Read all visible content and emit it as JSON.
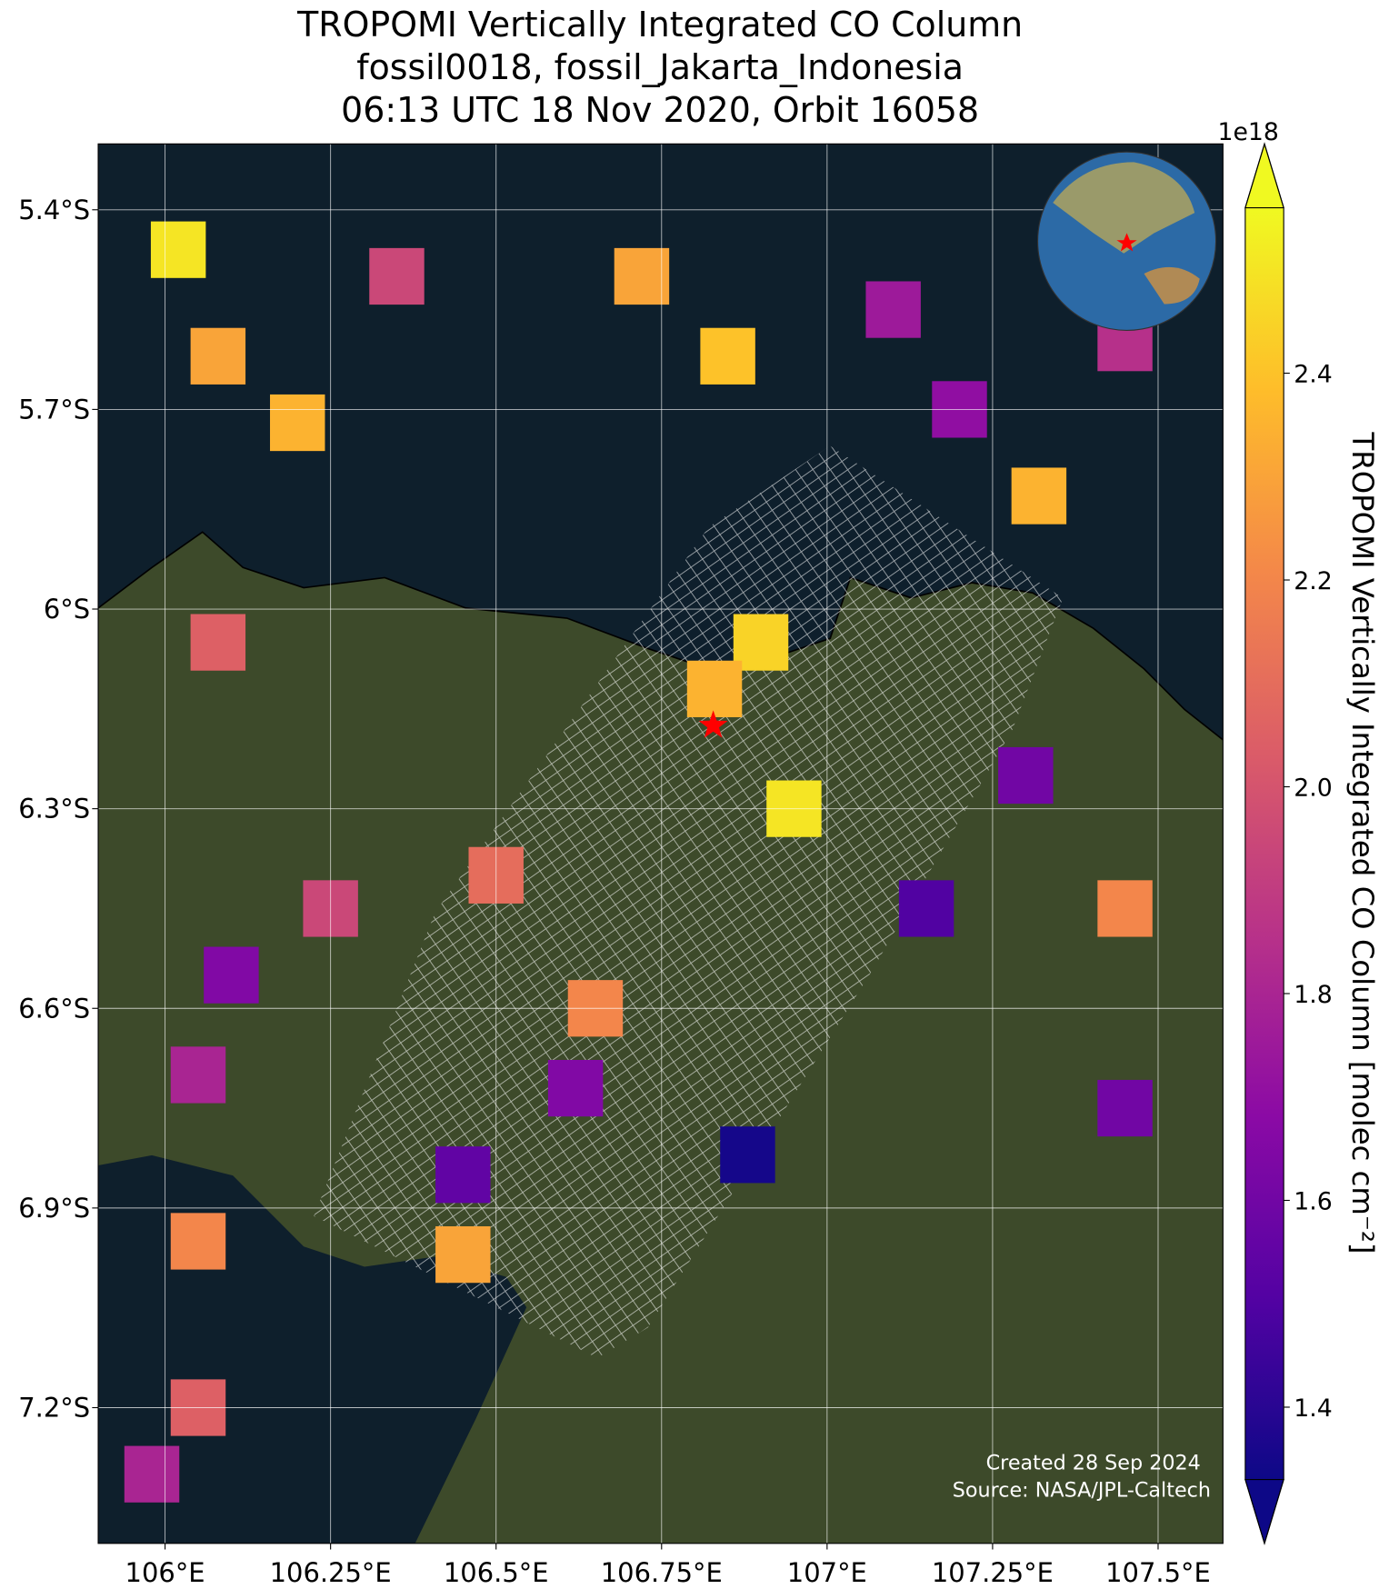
{
  "chart_data": {
    "type": "map",
    "title": [
      "TROPOMI Vertically Integrated CO Column",
      "fossil0018, fossil_Jakarta_Indonesia",
      "06:13 UTC 18 Nov 2020, Orbit 16058"
    ],
    "xlim": [
      105.899,
      107.598
    ],
    "ylim": [
      -7.404,
      -5.301
    ],
    "xticks": [
      {
        "value": 106,
        "label": "106°E"
      },
      {
        "value": 106.25,
        "label": "106.25°E"
      },
      {
        "value": 106.5,
        "label": "106.5°E"
      },
      {
        "value": 106.75,
        "label": "106.75°E"
      },
      {
        "value": 107,
        "label": "107°E"
      },
      {
        "value": 107.25,
        "label": "107.25°E"
      },
      {
        "value": 107.5,
        "label": "107.5°E"
      }
    ],
    "yticks": [
      {
        "value": -5.4,
        "label": "5.4°S"
      },
      {
        "value": -5.7,
        "label": "5.7°S"
      },
      {
        "value": -6,
        "label": "6°S"
      },
      {
        "value": -6.3,
        "label": "6.3°S"
      },
      {
        "value": -6.6,
        "label": "6.6°S"
      },
      {
        "value": -6.9,
        "label": "6.9°S"
      },
      {
        "value": -7.2,
        "label": "7.2°S"
      }
    ],
    "grid": true,
    "colorbar": {
      "label": "TROPOMI Vertically Integrated CO Column [molec cm⁻²]",
      "exponent": "1e18",
      "clim": [
        1.33,
        2.56
      ],
      "ticks": [
        1.4,
        1.6,
        1.8,
        {
          "value": 2,
          "label": "2.0"
        },
        2.2,
        2.4
      ],
      "colors": [
        "#0d0887",
        "#5302a3",
        "#8b0aa5",
        "#b83289",
        "#db5c68",
        "#f48849",
        "#febd2a",
        "#f0f921"
      ]
    },
    "cells": {
      "lon": [
        106.02,
        106.08,
        106.2,
        106.35,
        106.08,
        106.72,
        106.85,
        107.1,
        107.2,
        107.32,
        107.45,
        106.9,
        106.95,
        106.83,
        107.3,
        107.15,
        107.45,
        106.25,
        106.1,
        106.05,
        106.5,
        106.65,
        106.88,
        106.45,
        106.45,
        106.05,
        107.45,
        105.98,
        106.05,
        106.62
      ],
      "lat": [
        -5.46,
        -5.62,
        -5.72,
        -5.5,
        -6.05,
        -5.5,
        -5.62,
        -5.55,
        -5.7,
        -5.83,
        -5.6,
        -6.05,
        -6.3,
        -6.12,
        -6.25,
        -6.45,
        -6.45,
        -6.45,
        -6.55,
        -6.7,
        -6.4,
        -6.6,
        -6.82,
        -6.85,
        -6.97,
        -6.95,
        -6.75,
        -7.3,
        -7.2,
        -6.72
      ],
      "values": [
        2.5,
        2.3,
        2.35,
        1.95,
        2.05,
        2.3,
        2.4,
        1.75,
        1.7,
        2.35,
        1.85,
        2.45,
        2.5,
        2.35,
        1.6,
        1.5,
        2.2,
        1.95,
        1.65,
        1.8,
        2.1,
        2.2,
        1.35,
        1.55,
        2.3,
        2.2,
        1.6,
        1.8,
        2.05,
        1.65
      ]
    },
    "site": {
      "lon": 106.828,
      "lat": -6.175
    },
    "footer": [
      "Created 28 Sep 2024",
      "Source: NASA/JPL-Caltech"
    ]
  }
}
